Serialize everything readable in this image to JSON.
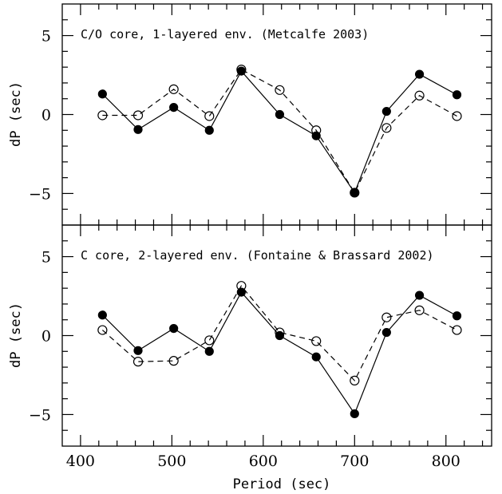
{
  "chart_data": [
    {
      "type": "line",
      "annotation": "C/O core, 1-layered env. (Metcalfe 2003)",
      "xlabel": "",
      "ylabel": "dP (sec)",
      "xlim": [
        380,
        850
      ],
      "ylim": [
        -7,
        7
      ],
      "x_ticks": [
        400,
        500,
        600,
        700,
        800
      ],
      "y_ticks": [
        -5,
        0,
        5
      ],
      "y_tick_labels": [
        "−5",
        "0",
        "5"
      ],
      "series": [
        {
          "style": "solid-filled-circles",
          "x": [
            424,
            463,
            502,
            541,
            576,
            618,
            658,
            700,
            735,
            771,
            812
          ],
          "y": [
            1.3,
            -0.95,
            0.45,
            -1.0,
            2.75,
            0.0,
            -1.35,
            -4.95,
            0.2,
            2.55,
            1.25
          ]
        },
        {
          "style": "dashed-open-circles",
          "x": [
            424,
            463,
            502,
            541,
            576,
            618,
            658,
            700,
            735,
            771,
            812
          ],
          "y": [
            -0.05,
            -0.05,
            1.6,
            -0.1,
            2.85,
            1.55,
            -1.0,
            -4.95,
            -0.85,
            1.2,
            -0.1
          ]
        }
      ]
    },
    {
      "type": "line",
      "annotation": "C core, 2-layered env. (Fontaine & Brassard 2002)",
      "xlabel": "Period (sec)",
      "ylabel": "dP (sec)",
      "xlim": [
        380,
        850
      ],
      "ylim": [
        -7,
        7
      ],
      "x_ticks": [
        400,
        500,
        600,
        700,
        800
      ],
      "x_tick_labels": [
        "400",
        "500",
        "600",
        "700",
        "800"
      ],
      "y_ticks": [
        -5,
        0,
        5
      ],
      "y_tick_labels": [
        "−5",
        "0",
        "5"
      ],
      "series": [
        {
          "style": "solid-filled-circles",
          "x": [
            424,
            463,
            502,
            541,
            576,
            618,
            658,
            700,
            735,
            771,
            812
          ],
          "y": [
            1.3,
            -0.95,
            0.45,
            -1.0,
            2.75,
            0.0,
            -1.35,
            -4.95,
            0.2,
            2.55,
            1.25
          ]
        },
        {
          "style": "dashed-open-circles",
          "x": [
            424,
            463,
            502,
            541,
            576,
            618,
            658,
            700,
            735,
            771,
            812
          ],
          "y": [
            0.35,
            -1.65,
            -1.6,
            -0.3,
            3.15,
            0.2,
            -0.35,
            -2.85,
            1.15,
            1.6,
            0.35
          ]
        }
      ]
    }
  ]
}
